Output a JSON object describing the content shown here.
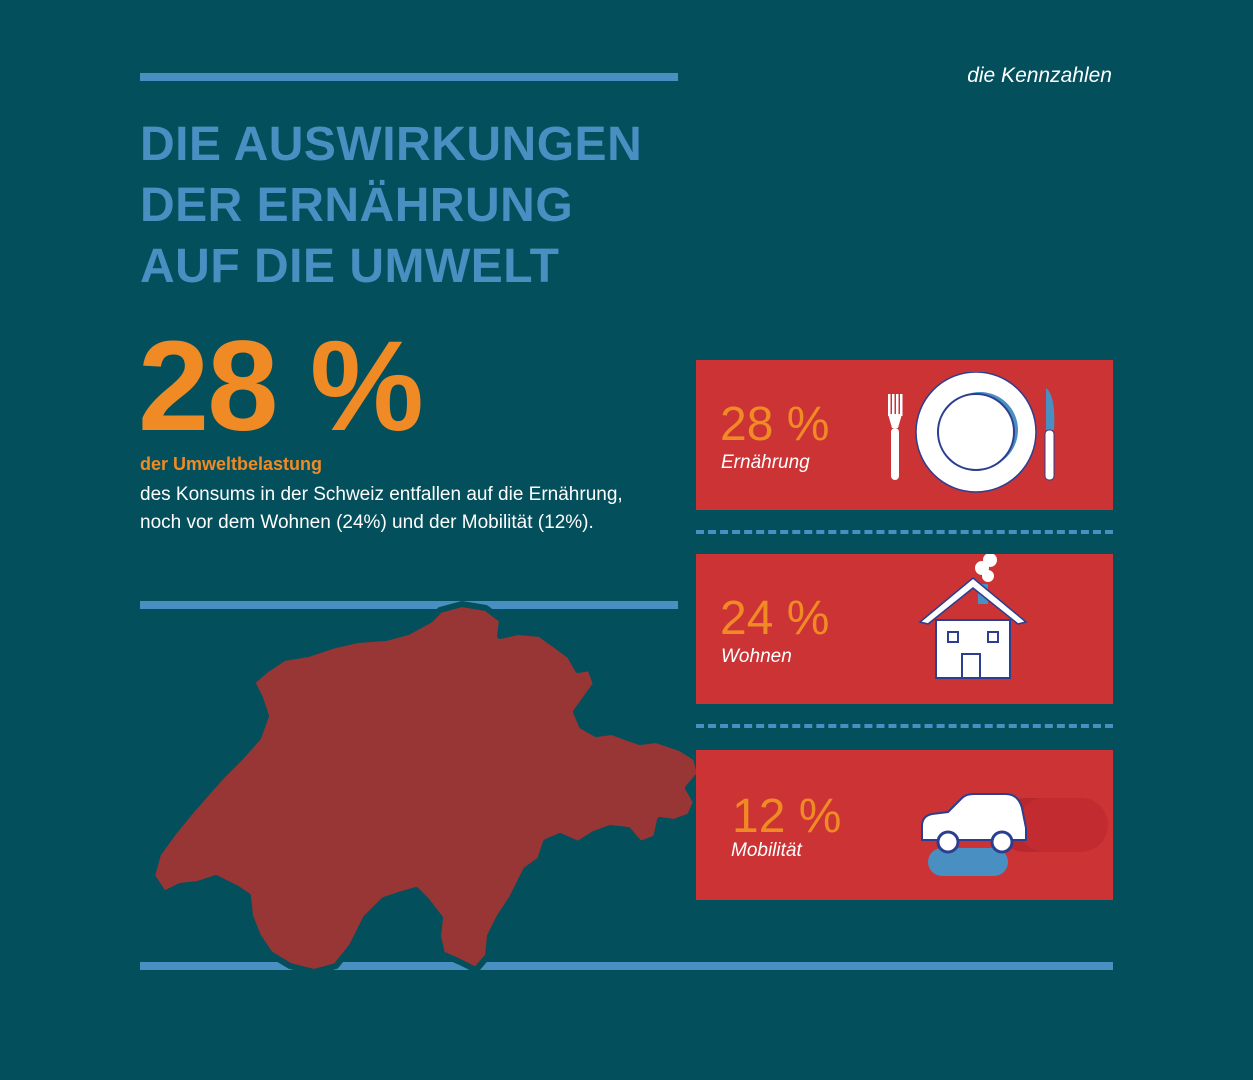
{
  "tagline": "die Kennzahlen",
  "title_lines": [
    "DIE AUSWIRKUNGEN",
    "DER ERNÄHRUNG",
    "AUF DIE UMWELT"
  ],
  "headline": {
    "value": "28 %",
    "subtitle": "der Umweltbelastung",
    "text_line1": "des Konsums in der Schweiz entfallen auf die Ernährung,",
    "text_line2": "noch vor dem Wohnen (24%) und der Mobilität (12%)."
  },
  "categories": [
    {
      "percent": "28 %",
      "label": "Ernährung",
      "icon": "plate-cutlery-icon"
    },
    {
      "percent": "24 %",
      "label": "Wohnen",
      "icon": "house-icon"
    },
    {
      "percent": "12 %",
      "label": "Mobilität",
      "icon": "car-icon"
    }
  ],
  "colors": {
    "background": "#034f5c",
    "accent_blue": "#4a8fc2",
    "accent_orange": "#f08a24",
    "panel_red": "#cc3335",
    "map_red": "#983635"
  }
}
